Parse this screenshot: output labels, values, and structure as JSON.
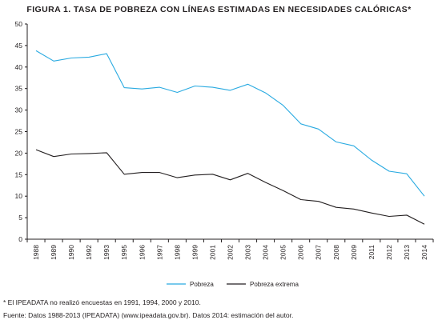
{
  "title": "FIGURA 1. TASA DE POBREZA CON LÍNEAS ESTIMADAS EN NECESIDADES CALÓRICAS*",
  "footnote_note": "* El IPEADATA no realizó encuestas en 1991, 1994, 2000 y 2010.",
  "footnote_source": "Fuente: Datos 1988-2013 (IPEADATA) (www.ipeadata.gov.br). Datos 2014: estimación del autor.",
  "colors": {
    "pobreza": "#29aae1",
    "pobreza_extrema": "#231f20",
    "axis": "#231f20"
  },
  "chart_data": {
    "type": "line",
    "title": "FIGURA 1. TASA DE POBREZA CON LÍNEAS ESTIMADAS EN NECESIDADES CALÓRICAS*",
    "xlabel": "",
    "ylabel": "",
    "x": [
      "1988",
      "1989",
      "1990",
      "1992",
      "1993",
      "1995",
      "1996",
      "1997",
      "1998",
      "1999",
      "2001",
      "2002",
      "2003",
      "2004",
      "2005",
      "2006",
      "2007",
      "2008",
      "2009",
      "2011",
      "2012",
      "2013",
      "2014"
    ],
    "ylim": [
      0,
      50
    ],
    "yticks": [
      0,
      5,
      10,
      15,
      20,
      25,
      30,
      35,
      40,
      45,
      50
    ],
    "grid": false,
    "legend_position": "bottom",
    "series": [
      {
        "name": "Pobreza",
        "color": "#29aae1",
        "values": [
          43.8,
          41.4,
          42.1,
          42.3,
          43.1,
          35.2,
          34.9,
          35.3,
          34.1,
          35.6,
          35.3,
          34.6,
          36.0,
          34.0,
          31.1,
          26.8,
          25.6,
          22.6,
          21.7,
          18.4,
          15.8,
          15.2,
          10.0
        ]
      },
      {
        "name": "Pobreza extrema",
        "color": "#231f20",
        "values": [
          20.8,
          19.2,
          19.8,
          19.9,
          20.1,
          15.1,
          15.5,
          15.5,
          14.3,
          14.9,
          15.1,
          13.8,
          15.3,
          13.2,
          11.3,
          9.2,
          8.8,
          7.4,
          7.0,
          6.1,
          5.3,
          5.6,
          3.5
        ]
      }
    ]
  }
}
